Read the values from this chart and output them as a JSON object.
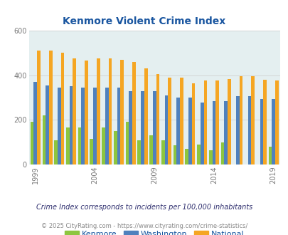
{
  "title": "Kenmore Violent Crime Index",
  "years": [
    1999,
    2000,
    2001,
    2002,
    2003,
    2004,
    2005,
    2006,
    2007,
    2008,
    2009,
    2010,
    2011,
    2012,
    2013,
    2014,
    2015,
    2016,
    2017,
    2018,
    2019
  ],
  "kenmore": [
    190,
    220,
    110,
    165,
    165,
    115,
    165,
    150,
    190,
    110,
    130,
    110,
    85,
    70,
    90,
    65,
    100,
    0,
    0,
    0,
    80
  ],
  "washington": [
    370,
    355,
    345,
    350,
    345,
    345,
    345,
    345,
    330,
    330,
    330,
    310,
    300,
    300,
    278,
    285,
    285,
    305,
    305,
    295,
    295
  ],
  "national": [
    510,
    510,
    500,
    475,
    465,
    475,
    475,
    470,
    460,
    430,
    405,
    390,
    390,
    365,
    375,
    375,
    383,
    395,
    395,
    380,
    375
  ],
  "kenmore_color": "#8dc63f",
  "washington_color": "#4f81bd",
  "national_color": "#f5a623",
  "bg_color": "#e4eff0",
  "ylim": [
    0,
    600
  ],
  "yticks": [
    0,
    200,
    400,
    600
  ],
  "xticks": [
    1999,
    2004,
    2009,
    2014,
    2019
  ],
  "title_color": "#1a56a0",
  "footnote1": "Crime Index corresponds to incidents per 100,000 inhabitants",
  "footnote2": "© 2025 CityRating.com - https://www.cityrating.com/crime-statistics/",
  "footnote1_color": "#2e2e6e",
  "footnote2_color": "#888888",
  "bar_width": 0.28,
  "legend_labels": [
    "Kenmore",
    "Washington",
    "National"
  ],
  "legend_color": "#1a56a0"
}
